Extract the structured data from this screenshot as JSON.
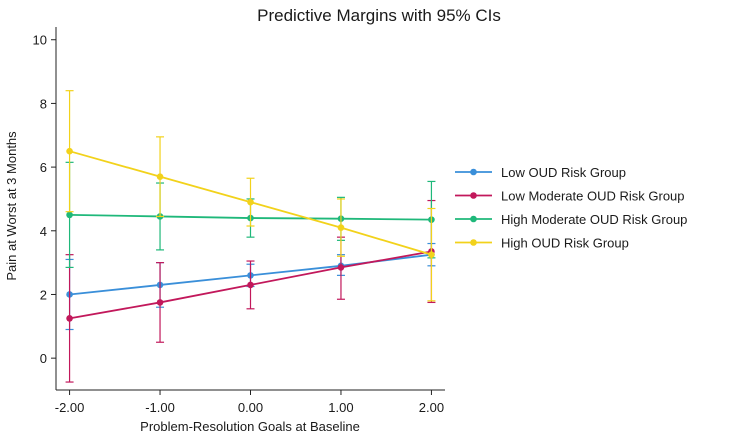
{
  "chart_data": {
    "type": "line",
    "title": "Predictive Margins with 95% CIs",
    "xlabel": "Problem-Resolution Goals at Baseline",
    "ylabel": "Pain at Worst at 3 Months",
    "x": [
      -2,
      -1,
      0,
      1,
      2
    ],
    "x_tick_labels": [
      "-2.00",
      "-1.00",
      "0.00",
      "1.00",
      "2.00"
    ],
    "y_ticks": [
      0,
      2,
      4,
      6,
      8,
      10
    ],
    "y_tick_labels": [
      "0",
      "2",
      "4",
      "6",
      "8",
      "10"
    ],
    "xlim": [
      -2.15,
      2.15
    ],
    "ylim": [
      -1,
      10.4
    ],
    "grid": false,
    "legend_position": "right",
    "series": [
      {
        "name": "Low OUD Risk Group",
        "color": "#3a8fd9",
        "values": [
          2.0,
          2.3,
          2.6,
          2.9,
          3.25
        ],
        "ci_lower": [
          0.9,
          1.6,
          2.25,
          2.6,
          2.9
        ],
        "ci_upper": [
          3.1,
          3.0,
          2.95,
          3.25,
          3.6
        ]
      },
      {
        "name": "Low Moderate OUD Risk Group",
        "color": "#c2185b",
        "values": [
          1.25,
          1.75,
          2.3,
          2.85,
          3.35
        ],
        "ci_lower": [
          -0.75,
          0.5,
          1.55,
          1.85,
          1.75
        ],
        "ci_upper": [
          3.25,
          3.0,
          3.05,
          3.8,
          4.95
        ]
      },
      {
        "name": "High Moderate OUD Risk Group",
        "color": "#1fb87a",
        "values": [
          4.5,
          4.45,
          4.4,
          4.38,
          4.35
        ],
        "ci_lower": [
          2.85,
          3.4,
          3.8,
          3.7,
          3.15
        ],
        "ci_upper": [
          6.15,
          5.5,
          5.0,
          5.05,
          5.55
        ]
      },
      {
        "name": "High OUD Risk Group",
        "color": "#f2d21b",
        "values": [
          6.5,
          5.7,
          4.9,
          4.1,
          3.25
        ],
        "ci_lower": [
          4.6,
          4.45,
          4.15,
          3.2,
          1.8
        ],
        "ci_upper": [
          8.4,
          6.95,
          5.65,
          5.0,
          4.7
        ]
      }
    ]
  }
}
